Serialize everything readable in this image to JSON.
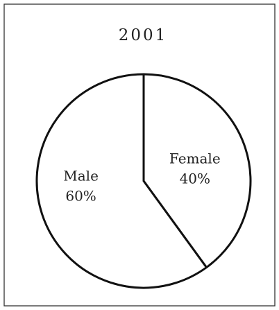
{
  "chart_data": {
    "type": "pie",
    "title": "2001",
    "slices": [
      {
        "label": "Female",
        "value": 40,
        "value_label": "40%"
      },
      {
        "label": "Male",
        "value": 60,
        "value_label": "60%"
      }
    ],
    "start_angle": "12 o'clock",
    "direction": "clockwise",
    "legend": "none",
    "colors": {
      "fill": "#ffffff",
      "stroke": "#111111"
    }
  }
}
